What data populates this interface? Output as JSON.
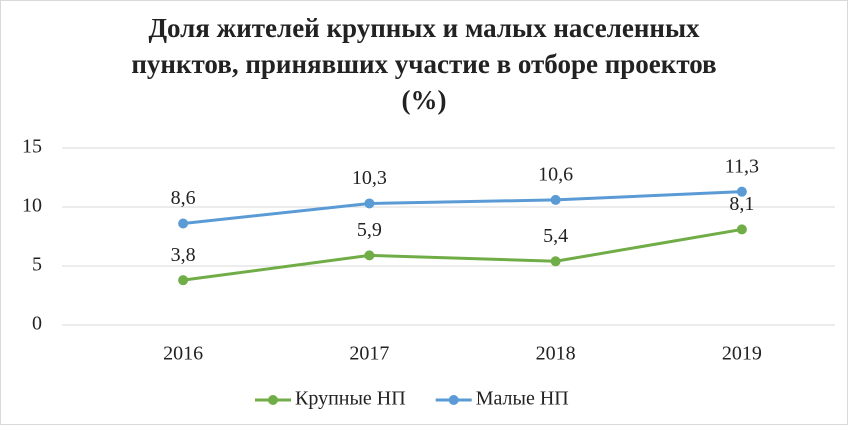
{
  "chart_data": {
    "type": "line",
    "title": "Доля жителей крупных и малых населенных пунктов, принявших участие в отборе проектов (%)",
    "categories": [
      "2016",
      "2017",
      "2018",
      "2019"
    ],
    "series": [
      {
        "name": "Крупные НП",
        "color": "#70ad47",
        "values": [
          3.8,
          5.9,
          5.4,
          8.1
        ],
        "value_labels": [
          "3,8",
          "5,9",
          "5,4",
          "8,1"
        ]
      },
      {
        "name": "Малые НП",
        "color": "#5b9bd5",
        "values": [
          8.6,
          10.3,
          10.6,
          11.3
        ],
        "value_labels": [
          "8,6",
          "10,3",
          "10,6",
          "11,3"
        ]
      }
    ],
    "ylim": [
      0,
      15
    ],
    "yticks": [
      0,
      5,
      10,
      15
    ],
    "grid": true,
    "legend": "bottom"
  }
}
